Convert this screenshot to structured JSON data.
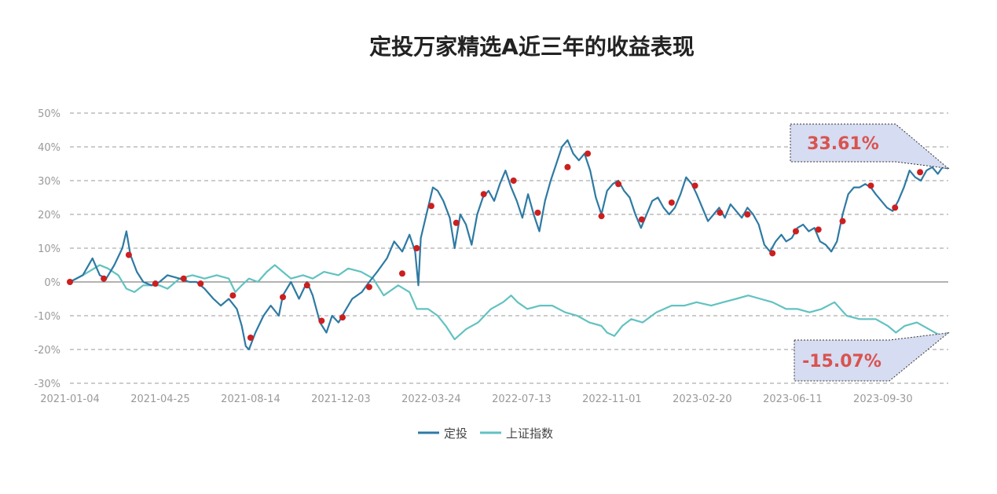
{
  "chart_data": {
    "type": "line",
    "title": "定投万家精选A近三年的收益表现",
    "x_tick_labels": [
      "2021-01-04",
      "2021-04-25",
      "2021-08-14",
      "2021-12-03",
      "2022-03-24",
      "2022-07-13",
      "2022-11-01",
      "2023-02-20",
      "2023-06-11",
      "2023-09-30"
    ],
    "x_range": [
      "2021-01-04",
      "2023-12-29"
    ],
    "y_ticks": [
      50,
      40,
      30,
      20,
      10,
      0,
      -10,
      -20,
      -30
    ],
    "y_tick_labels": [
      "50%",
      "40%",
      "30%",
      "20%",
      "10%",
      "0%",
      "-10%",
      "-20%",
      "-30%"
    ],
    "ylim": [
      -30,
      50
    ],
    "grid": true,
    "legend_position": "bottom",
    "series": [
      {
        "name": "定投",
        "color": "#2e7aa3",
        "points": [
          [
            "2021-01-04",
            0
          ],
          [
            "2021-01-20",
            2
          ],
          [
            "2021-02-01",
            7
          ],
          [
            "2021-02-10",
            2
          ],
          [
            "2021-02-18",
            1
          ],
          [
            "2021-02-28",
            5
          ],
          [
            "2021-03-10",
            10
          ],
          [
            "2021-03-15",
            15
          ],
          [
            "2021-03-20",
            8
          ],
          [
            "2021-03-28",
            3
          ],
          [
            "2021-04-05",
            0
          ],
          [
            "2021-04-15",
            -1
          ],
          [
            "2021-04-25",
            0
          ],
          [
            "2021-05-05",
            2
          ],
          [
            "2021-05-20",
            1
          ],
          [
            "2021-06-01",
            0
          ],
          [
            "2021-06-10",
            0
          ],
          [
            "2021-06-20",
            -2
          ],
          [
            "2021-07-01",
            -5
          ],
          [
            "2021-07-10",
            -7
          ],
          [
            "2021-07-20",
            -5
          ],
          [
            "2021-07-30",
            -8
          ],
          [
            "2021-08-05",
            -13
          ],
          [
            "2021-08-10",
            -19
          ],
          [
            "2021-08-14",
            -20
          ],
          [
            "2021-08-22",
            -15
          ],
          [
            "2021-09-01",
            -10
          ],
          [
            "2021-09-10",
            -7
          ],
          [
            "2021-09-20",
            -10
          ],
          [
            "2021-09-25",
            -4
          ],
          [
            "2021-10-05",
            0
          ],
          [
            "2021-10-15",
            -5
          ],
          [
            "2021-10-25",
            0
          ],
          [
            "2021-11-01",
            -4
          ],
          [
            "2021-11-10",
            -12
          ],
          [
            "2021-11-18",
            -15
          ],
          [
            "2021-11-25",
            -10
          ],
          [
            "2021-12-03",
            -12
          ],
          [
            "2021-12-10",
            -9
          ],
          [
            "2021-12-20",
            -5
          ],
          [
            "2022-01-01",
            -3
          ],
          [
            "2022-01-10",
            0
          ],
          [
            "2022-01-20",
            3
          ],
          [
            "2022-02-01",
            7
          ],
          [
            "2022-02-10",
            12
          ],
          [
            "2022-02-20",
            9
          ],
          [
            "2022-03-01",
            14
          ],
          [
            "2022-03-08",
            9
          ],
          [
            "2022-03-12",
            -1
          ],
          [
            "2022-03-15",
            13
          ],
          [
            "2022-03-24",
            22
          ],
          [
            "2022-03-30",
            28
          ],
          [
            "2022-04-05",
            27
          ],
          [
            "2022-04-12",
            24
          ],
          [
            "2022-04-20",
            19
          ],
          [
            "2022-04-26",
            10
          ],
          [
            "2022-05-03",
            20
          ],
          [
            "2022-05-10",
            17
          ],
          [
            "2022-05-17",
            11
          ],
          [
            "2022-05-24",
            20
          ],
          [
            "2022-05-31",
            25
          ],
          [
            "2022-06-07",
            27
          ],
          [
            "2022-06-14",
            24
          ],
          [
            "2022-06-21",
            29
          ],
          [
            "2022-06-28",
            33
          ],
          [
            "2022-07-05",
            28
          ],
          [
            "2022-07-12",
            24
          ],
          [
            "2022-07-19",
            19
          ],
          [
            "2022-07-26",
            26
          ],
          [
            "2022-08-02",
            20
          ],
          [
            "2022-08-09",
            15
          ],
          [
            "2022-08-16",
            24
          ],
          [
            "2022-08-23",
            30
          ],
          [
            "2022-08-30",
            35
          ],
          [
            "2022-09-06",
            40
          ],
          [
            "2022-09-13",
            42
          ],
          [
            "2022-09-20",
            38
          ],
          [
            "2022-09-27",
            36
          ],
          [
            "2022-10-04",
            38
          ],
          [
            "2022-10-11",
            33
          ],
          [
            "2022-10-18",
            25
          ],
          [
            "2022-10-25",
            20
          ],
          [
            "2022-11-01",
            27
          ],
          [
            "2022-11-08",
            29
          ],
          [
            "2022-11-15",
            30
          ],
          [
            "2022-11-22",
            27
          ],
          [
            "2022-11-29",
            25
          ],
          [
            "2022-12-06",
            20
          ],
          [
            "2022-12-13",
            16
          ],
          [
            "2022-12-20",
            20
          ],
          [
            "2022-12-27",
            24
          ],
          [
            "2023-01-03",
            25
          ],
          [
            "2023-01-10",
            22
          ],
          [
            "2023-01-17",
            20
          ],
          [
            "2023-01-24",
            22
          ],
          [
            "2023-01-31",
            26
          ],
          [
            "2023-02-07",
            31
          ],
          [
            "2023-02-14",
            29
          ],
          [
            "2023-02-20",
            26
          ],
          [
            "2023-02-27",
            22
          ],
          [
            "2023-03-06",
            18
          ],
          [
            "2023-03-13",
            20
          ],
          [
            "2023-03-20",
            22
          ],
          [
            "2023-03-27",
            19
          ],
          [
            "2023-04-03",
            23
          ],
          [
            "2023-04-10",
            21
          ],
          [
            "2023-04-17",
            19
          ],
          [
            "2023-04-24",
            22
          ],
          [
            "2023-05-01",
            20
          ],
          [
            "2023-05-08",
            17
          ],
          [
            "2023-05-15",
            11
          ],
          [
            "2023-05-22",
            9
          ],
          [
            "2023-05-29",
            12
          ],
          [
            "2023-06-05",
            14
          ],
          [
            "2023-06-11",
            12
          ],
          [
            "2023-06-18",
            13
          ],
          [
            "2023-06-25",
            16
          ],
          [
            "2023-07-02",
            17
          ],
          [
            "2023-07-09",
            15
          ],
          [
            "2023-07-16",
            16
          ],
          [
            "2023-07-23",
            12
          ],
          [
            "2023-07-30",
            11
          ],
          [
            "2023-08-06",
            9
          ],
          [
            "2023-08-13",
            12
          ],
          [
            "2023-08-20",
            20
          ],
          [
            "2023-08-27",
            26
          ],
          [
            "2023-09-03",
            28
          ],
          [
            "2023-09-10",
            28
          ],
          [
            "2023-09-17",
            29
          ],
          [
            "2023-09-24",
            28
          ],
          [
            "2023-09-30",
            26
          ],
          [
            "2023-10-07",
            24
          ],
          [
            "2023-10-14",
            22
          ],
          [
            "2023-10-21",
            21
          ],
          [
            "2023-10-28",
            24
          ],
          [
            "2023-11-04",
            28
          ],
          [
            "2023-11-11",
            33
          ],
          [
            "2023-11-18",
            31
          ],
          [
            "2023-11-25",
            30
          ],
          [
            "2023-12-02",
            33
          ],
          [
            "2023-12-09",
            34
          ],
          [
            "2023-12-16",
            32
          ],
          [
            "2023-12-22",
            34
          ],
          [
            "2023-12-29",
            33.61
          ]
        ]
      },
      {
        "name": "上证指数",
        "color": "#62c2c0",
        "points": [
          [
            "2021-01-04",
            0
          ],
          [
            "2021-01-20",
            2
          ],
          [
            "2021-02-10",
            5
          ],
          [
            "2021-02-20",
            4
          ],
          [
            "2021-03-05",
            2
          ],
          [
            "2021-03-15",
            -2
          ],
          [
            "2021-03-25",
            -3
          ],
          [
            "2021-04-05",
            -1
          ],
          [
            "2021-04-25",
            -1
          ],
          [
            "2021-05-05",
            -2
          ],
          [
            "2021-05-20",
            1
          ],
          [
            "2021-06-05",
            2
          ],
          [
            "2021-06-20",
            1
          ],
          [
            "2021-07-05",
            2
          ],
          [
            "2021-07-20",
            1
          ],
          [
            "2021-07-28",
            -3
          ],
          [
            "2021-08-05",
            -1
          ],
          [
            "2021-08-14",
            1
          ],
          [
            "2021-08-25",
            0
          ],
          [
            "2021-09-05",
            3
          ],
          [
            "2021-09-15",
            5
          ],
          [
            "2021-09-25",
            3
          ],
          [
            "2021-10-05",
            1
          ],
          [
            "2021-10-20",
            2
          ],
          [
            "2021-11-01",
            1
          ],
          [
            "2021-11-15",
            3
          ],
          [
            "2021-12-03",
            2
          ],
          [
            "2021-12-15",
            4
          ],
          [
            "2021-12-31",
            3
          ],
          [
            "2022-01-15",
            1
          ],
          [
            "2022-01-28",
            -4
          ],
          [
            "2022-02-15",
            -1
          ],
          [
            "2022-03-01",
            -3
          ],
          [
            "2022-03-10",
            -8
          ],
          [
            "2022-03-24",
            -8
          ],
          [
            "2022-04-05",
            -10
          ],
          [
            "2022-04-15",
            -13
          ],
          [
            "2022-04-26",
            -17
          ],
          [
            "2022-05-10",
            -14
          ],
          [
            "2022-05-25",
            -12
          ],
          [
            "2022-06-10",
            -8
          ],
          [
            "2022-06-25",
            -6
          ],
          [
            "2022-07-05",
            -4
          ],
          [
            "2022-07-13",
            -6
          ],
          [
            "2022-07-25",
            -8
          ],
          [
            "2022-08-10",
            -7
          ],
          [
            "2022-08-25",
            -7
          ],
          [
            "2022-09-10",
            -9
          ],
          [
            "2022-09-25",
            -10
          ],
          [
            "2022-10-10",
            -12
          ],
          [
            "2022-10-25",
            -13
          ],
          [
            "2022-11-01",
            -15
          ],
          [
            "2022-11-10",
            -16
          ],
          [
            "2022-11-20",
            -13
          ],
          [
            "2022-12-01",
            -11
          ],
          [
            "2022-12-15",
            -12
          ],
          [
            "2023-01-01",
            -9
          ],
          [
            "2023-01-20",
            -7
          ],
          [
            "2023-02-05",
            -7
          ],
          [
            "2023-02-20",
            -6
          ],
          [
            "2023-03-10",
            -7
          ],
          [
            "2023-03-25",
            -6
          ],
          [
            "2023-04-10",
            -5
          ],
          [
            "2023-04-25",
            -4
          ],
          [
            "2023-05-10",
            -5
          ],
          [
            "2023-05-25",
            -6
          ],
          [
            "2023-06-11",
            -8
          ],
          [
            "2023-06-25",
            -8
          ],
          [
            "2023-07-10",
            -9
          ],
          [
            "2023-07-25",
            -8
          ],
          [
            "2023-08-10",
            -6
          ],
          [
            "2023-08-25",
            -10
          ],
          [
            "2023-09-10",
            -11
          ],
          [
            "2023-09-30",
            -11
          ],
          [
            "2023-10-15",
            -13
          ],
          [
            "2023-10-25",
            -15
          ],
          [
            "2023-11-05",
            -13
          ],
          [
            "2023-11-20",
            -12
          ],
          [
            "2023-12-05",
            -14
          ],
          [
            "2023-12-20",
            -16
          ],
          [
            "2023-12-29",
            -15.07
          ]
        ]
      }
    ],
    "markers": {
      "series": "定投",
      "color": "#cc1f1f",
      "points": [
        [
          "2021-01-04",
          0
        ],
        [
          "2021-02-15",
          1
        ],
        [
          "2021-03-18",
          8
        ],
        [
          "2021-04-20",
          -0.5
        ],
        [
          "2021-05-25",
          1
        ],
        [
          "2021-06-15",
          -0.5
        ],
        [
          "2021-07-25",
          -4
        ],
        [
          "2021-08-16",
          -16.5
        ],
        [
          "2021-09-25",
          -4.5
        ],
        [
          "2021-10-25",
          -1
        ],
        [
          "2021-11-12",
          -11.5
        ],
        [
          "2021-12-08",
          -10.5
        ],
        [
          "2022-01-10",
          -1.5
        ],
        [
          "2022-02-20",
          2.5
        ],
        [
          "2022-03-10",
          10
        ],
        [
          "2022-03-28",
          22.5
        ],
        [
          "2022-04-28",
          17.5
        ],
        [
          "2022-06-01",
          26
        ],
        [
          "2022-07-08",
          30
        ],
        [
          "2022-08-07",
          20.5
        ],
        [
          "2022-09-13",
          34
        ],
        [
          "2022-10-08",
          38
        ],
        [
          "2022-10-25",
          19.5
        ],
        [
          "2022-11-15",
          29
        ],
        [
          "2022-12-14",
          18.5
        ],
        [
          "2023-01-20",
          23.5
        ],
        [
          "2023-02-18",
          28.5
        ],
        [
          "2023-03-21",
          20.5
        ],
        [
          "2023-04-24",
          20
        ],
        [
          "2023-05-25",
          8.5
        ],
        [
          "2023-06-23",
          15
        ],
        [
          "2023-07-21",
          15.5
        ],
        [
          "2023-08-20",
          18
        ],
        [
          "2023-09-24",
          28.5
        ],
        [
          "2023-10-24",
          22
        ],
        [
          "2023-11-24",
          32.5
        ]
      ]
    },
    "annotations": [
      {
        "series": "定投",
        "label": "33.61%",
        "value": 33.61,
        "position": "upper-right",
        "text_color": "#d9534f",
        "fill": "#d6dcf2"
      },
      {
        "series": "上证指数",
        "label": "-15.07%",
        "value": -15.07,
        "position": "lower-right",
        "text_color": "#d9534f",
        "fill": "#d6dcf2"
      }
    ],
    "colors": {
      "grid": "#999999",
      "zero_line": "#666666",
      "tick_text": "#999999"
    }
  }
}
